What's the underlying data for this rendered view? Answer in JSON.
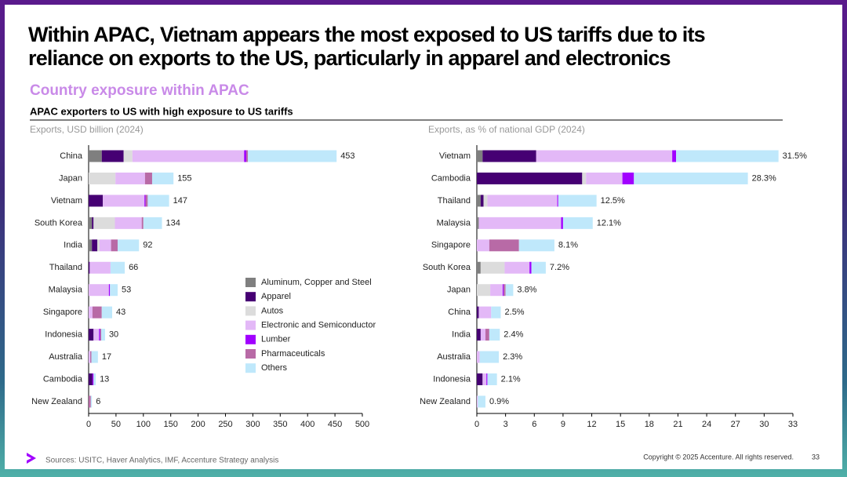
{
  "header": {
    "title_lines": [
      "Within APAC, Vietnam appears the most exposed to US tariffs due to its",
      "reliance on exports to the US, particularly in apparel and electronics"
    ],
    "subtitle": "Country exposure within APAC",
    "section": "APAC exporters to US with high exposure to US tariffs"
  },
  "footer": {
    "sources": "Sources: USITC, Haver Analytics, IMF, Accenture Strategy analysis",
    "copyright": "Copyright © 2025 Accenture. All rights reserved.",
    "page": "33"
  },
  "chart_data": [
    {
      "type": "stacked-bar-horizontal",
      "title": "Exports, USD billion (2024)",
      "categories": [
        "China",
        "Japan",
        "Vietnam",
        "South Korea",
        "India",
        "Thailand",
        "Malaysia",
        "Singapore",
        "Indonesia",
        "Australia",
        "Cambodia",
        "New Zealand"
      ],
      "xlim": [
        0,
        500
      ],
      "xticks": [
        0,
        50,
        100,
        150,
        200,
        250,
        300,
        350,
        400,
        450,
        500
      ],
      "totals": [
        453,
        155,
        147,
        134,
        92,
        66,
        53,
        43,
        30,
        17,
        13,
        6
      ],
      "series": [
        {
          "name": "Aluminum, Copper and Steel",
          "color": "#7f7f7f",
          "values": [
            24,
            0,
            0,
            6,
            6,
            0,
            0,
            0,
            0,
            0,
            0,
            0
          ]
        },
        {
          "name": "Apparel",
          "color": "#460073",
          "values": [
            40,
            0,
            26,
            3,
            10,
            2,
            0,
            0,
            9,
            0,
            7,
            0
          ]
        },
        {
          "name": "Autos",
          "color": "#dcdcdc",
          "values": [
            16,
            49,
            0,
            39,
            4,
            0,
            0,
            0,
            0,
            0,
            0,
            0
          ]
        },
        {
          "name": "Electronic and Semiconductor",
          "color": "#e3b8f7",
          "values": [
            204,
            54,
            76,
            49,
            21,
            38,
            37,
            7,
            10,
            3,
            0,
            0
          ]
        },
        {
          "name": "Lumber",
          "color": "#a100ff",
          "values": [
            4,
            0,
            2,
            0,
            0,
            0,
            2,
            0,
            2,
            0,
            2,
            0
          ]
        },
        {
          "name": "Pharmaceuticals",
          "color": "#b86aa6",
          "values": [
            3,
            13,
            4,
            3,
            12,
            0,
            0,
            17,
            2,
            2,
            0,
            4
          ]
        },
        {
          "name": "Others",
          "color": "#bfe8fb",
          "values": [
            162,
            39,
            39,
            34,
            39,
            26,
            14,
            19,
            7,
            12,
            4,
            2
          ]
        }
      ]
    },
    {
      "type": "stacked-bar-horizontal",
      "title": "Exports, as % of national GDP (2024)",
      "categories": [
        "Vietnam",
        "Cambodia",
        "Thailand",
        "Malaysia",
        "Singapore",
        "South Korea",
        "Japan",
        "China",
        "India",
        "Australia",
        "Indonesia",
        "New Zealand"
      ],
      "xlim": [
        0,
        33
      ],
      "xticks": [
        0,
        3,
        6,
        9,
        12,
        15,
        18,
        21,
        24,
        27,
        30,
        33
      ],
      "totals": [
        31.5,
        28.3,
        12.5,
        12.1,
        8.1,
        7.2,
        3.8,
        2.5,
        2.4,
        2.3,
        2.1,
        0.9
      ],
      "value_labels": [
        "31.5%",
        "28.3%",
        "12.5%",
        "12.1%",
        "8.1%",
        "7.2%",
        "3.8%",
        "2.5%",
        "2.4%",
        "2.3%",
        "2.1%",
        "0.9%"
      ],
      "series": [
        {
          "name": "Aluminum, Copper and Steel",
          "color": "#7f7f7f",
          "values": [
            0.6,
            0,
            0.4,
            0.2,
            0,
            0.4,
            0,
            0,
            0,
            0,
            0,
            0
          ]
        },
        {
          "name": "Apparel",
          "color": "#460073",
          "values": [
            5.6,
            11.0,
            0.3,
            0,
            0,
            0,
            0,
            0.2,
            0.4,
            0,
            0.6,
            0
          ]
        },
        {
          "name": "Autos",
          "color": "#dcdcdc",
          "values": [
            0,
            0.4,
            0.4,
            0,
            0,
            2.5,
            1.4,
            0,
            0,
            0,
            0,
            0
          ]
        },
        {
          "name": "Electronic and Semiconductor",
          "color": "#e3b8f7",
          "values": [
            14.2,
            3.8,
            7.3,
            8.6,
            1.3,
            2.6,
            1.3,
            1.3,
            0.5,
            0.3,
            0.4,
            0.1
          ]
        },
        {
          "name": "Lumber",
          "color": "#a100ff",
          "values": [
            0.4,
            1.2,
            0.1,
            0.2,
            0,
            0.2,
            0.1,
            0,
            0,
            0,
            0.1,
            0
          ]
        },
        {
          "name": "Pharmaceuticals",
          "color": "#b86aa6",
          "values": [
            0,
            0,
            0,
            0,
            3.1,
            0,
            0.2,
            0,
            0.4,
            0,
            0,
            0
          ]
        },
        {
          "name": "Others",
          "color": "#bfe8fb",
          "values": [
            10.7,
            11.9,
            4.0,
            3.1,
            3.7,
            1.5,
            0.8,
            1.0,
            1.1,
            2.0,
            1.0,
            0.8
          ]
        }
      ]
    }
  ]
}
